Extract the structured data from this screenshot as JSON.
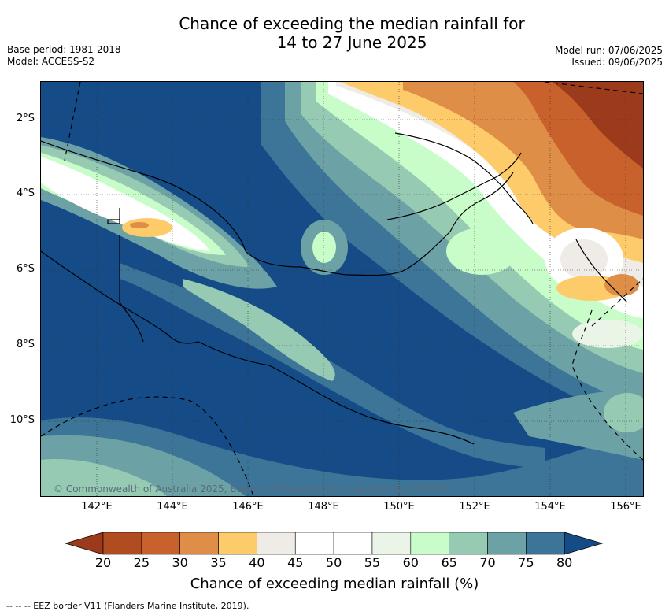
{
  "title_line1": "Chance of exceeding the median rainfall for",
  "title_line2": "14 to 27 June 2025",
  "meta_left": [
    "Base period: 1981-2018",
    "Model: ACCESS-S2"
  ],
  "meta_right": [
    "Model run: 07/06/2025",
    "Issued: 09/06/2025"
  ],
  "lat_ticks": [
    "2°S",
    "4°S",
    "6°S",
    "8°S",
    "10°S"
  ],
  "lon_ticks": [
    "142°E",
    "144°E",
    "146°E",
    "148°E",
    "150°E",
    "152°E",
    "154°E",
    "156°E"
  ],
  "colorbar": {
    "title": "Chance of exceeding median rainfall (%)",
    "labels": [
      "20",
      "25",
      "30",
      "35",
      "40",
      "45",
      "50",
      "55",
      "60",
      "65",
      "70",
      "75",
      "80"
    ],
    "colors": [
      "#b14c20",
      "#c9612c",
      "#df8e47",
      "#fecb6b",
      "#efebe7",
      "#ffffff",
      "#ffffff",
      "#eaf5e7",
      "#c8fdca",
      "#97cab3",
      "#6ca2a5",
      "#3c7598"
    ],
    "low_color": "#9c3a1c",
    "high_color": "#154c87"
  },
  "copyright": "© Commonwealth of Australia 2025, Bureau of Meteorology, supported by COSPPac",
  "legend_note": "-- -- -- EEZ border V11 (Flanders Marine Institute, 2019).",
  "map_colors": {
    "dark_blue": "#154c87",
    "blue": "#3c7598",
    "teal": "#6ca2a5",
    "sea_green": "#97cab3",
    "light_green": "#c8fdca",
    "pale": "#eaf5e7",
    "white": "#ffffff",
    "grey": "#efebe7",
    "yellow": "#fecb6b",
    "orange": "#df8e47",
    "rust": "#c9612c",
    "brown": "#9c3a1c"
  }
}
